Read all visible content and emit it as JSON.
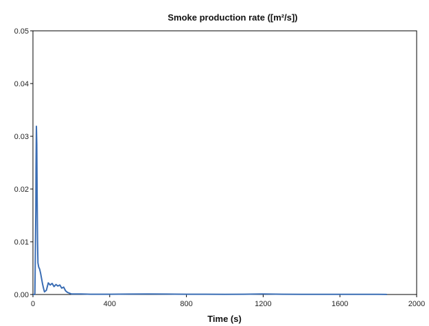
{
  "chart_data": {
    "type": "line",
    "title": "Smoke production rate ([m²/s])",
    "xlabel": "Time (s)",
    "ylabel": "",
    "xlim": [
      0,
      2000
    ],
    "ylim": [
      0,
      0.05
    ],
    "x_ticks": [
      0,
      400,
      800,
      1200,
      1600,
      2000
    ],
    "x_tick_labels": [
      "0",
      "400",
      "800",
      "1200",
      "1600",
      "2000"
    ],
    "y_ticks": [
      0,
      0.01,
      0.02,
      0.03,
      0.04,
      0.05
    ],
    "y_tick_labels": [
      "0.00",
      "0.01",
      "0.02",
      "0.03",
      "0.04",
      "0.05"
    ],
    "grid": false,
    "legend": "none",
    "colors": {
      "series": "#3a6db4",
      "axes": "#000000",
      "text": "#111111"
    },
    "series": [
      {
        "x": [
          0,
          5,
          8,
          10,
          12,
          15,
          16,
          18,
          20,
          22,
          24,
          26,
          30,
          35,
          40,
          45,
          50,
          55,
          60,
          70,
          80,
          90,
          100,
          110,
          120,
          130,
          140,
          150,
          160,
          170,
          180,
          200,
          250,
          300,
          400,
          500,
          600,
          700,
          800,
          900,
          1000,
          1100,
          1200,
          1300,
          1400,
          1500,
          1600,
          1700,
          1800,
          1840,
          1845
        ],
        "y": [
          0,
          0,
          0,
          0.0002,
          0.006,
          0.016,
          0.024,
          0.0319,
          0.0285,
          0.018,
          0.01,
          0.006,
          0.0052,
          0.0048,
          0.004,
          0.003,
          0.002,
          0.0012,
          0.0005,
          0.0008,
          0.0022,
          0.0018,
          0.0021,
          0.0015,
          0.0019,
          0.0016,
          0.0018,
          0.0012,
          0.0014,
          0.0007,
          0.0004,
          0.0001,
          0.0001,
          5e-05,
          5e-05,
          8e-05,
          0.0001,
          8e-05,
          5e-05,
          5e-05,
          4e-05,
          5e-05,
          0.0001,
          5e-05,
          4e-05,
          3e-05,
          4e-05,
          3e-05,
          3e-05,
          2e-05,
          0
        ]
      }
    ]
  }
}
